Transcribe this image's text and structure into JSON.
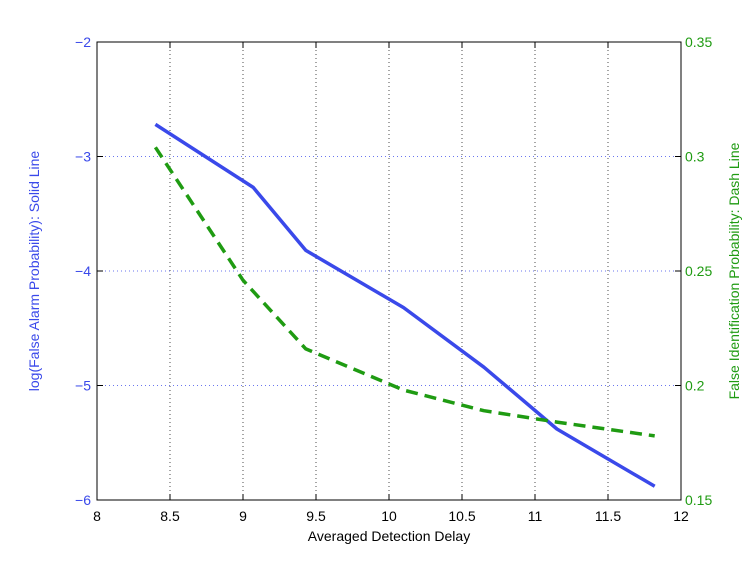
{
  "chart_data": {
    "type": "line",
    "title": "",
    "xlabel": "Averaged Detection Delay",
    "xlim": [
      8,
      12
    ],
    "xticks": [
      "8",
      "8.5",
      "9",
      "9.5",
      "10",
      "10.5",
      "11",
      "11.5",
      "12"
    ],
    "grid": true,
    "y_left": {
      "label": "log(False Alarm Probability): Solid Line",
      "ylim": [
        -6,
        -2
      ],
      "ticks": [
        "−6",
        "−5",
        "−4",
        "−3",
        "−2"
      ],
      "color": "#3a49ea"
    },
    "y_right": {
      "label": "False Identification Probability: Dash Line",
      "ylim": [
        0.15,
        0.35
      ],
      "ticks": [
        "0.15",
        "0.2",
        "0.25",
        "0.3",
        "0.35"
      ],
      "color": "#1f9b12"
    },
    "series": [
      {
        "axis": "left",
        "style": "solid",
        "color": "#3a49ea",
        "x": [
          8.4,
          9.07,
          9.43,
          10.1,
          10.65,
          11.15,
          11.82
        ],
        "y": [
          -2.72,
          -3.27,
          -3.82,
          -4.32,
          -4.84,
          -5.38,
          -5.88
        ]
      },
      {
        "axis": "right",
        "style": "dash",
        "color": "#1f9b12",
        "x": [
          8.4,
          9.0,
          9.43,
          10.1,
          10.65,
          11.15,
          11.82
        ],
        "y": [
          0.304,
          0.246,
          0.216,
          0.198,
          0.189,
          0.184,
          0.178
        ]
      }
    ]
  }
}
